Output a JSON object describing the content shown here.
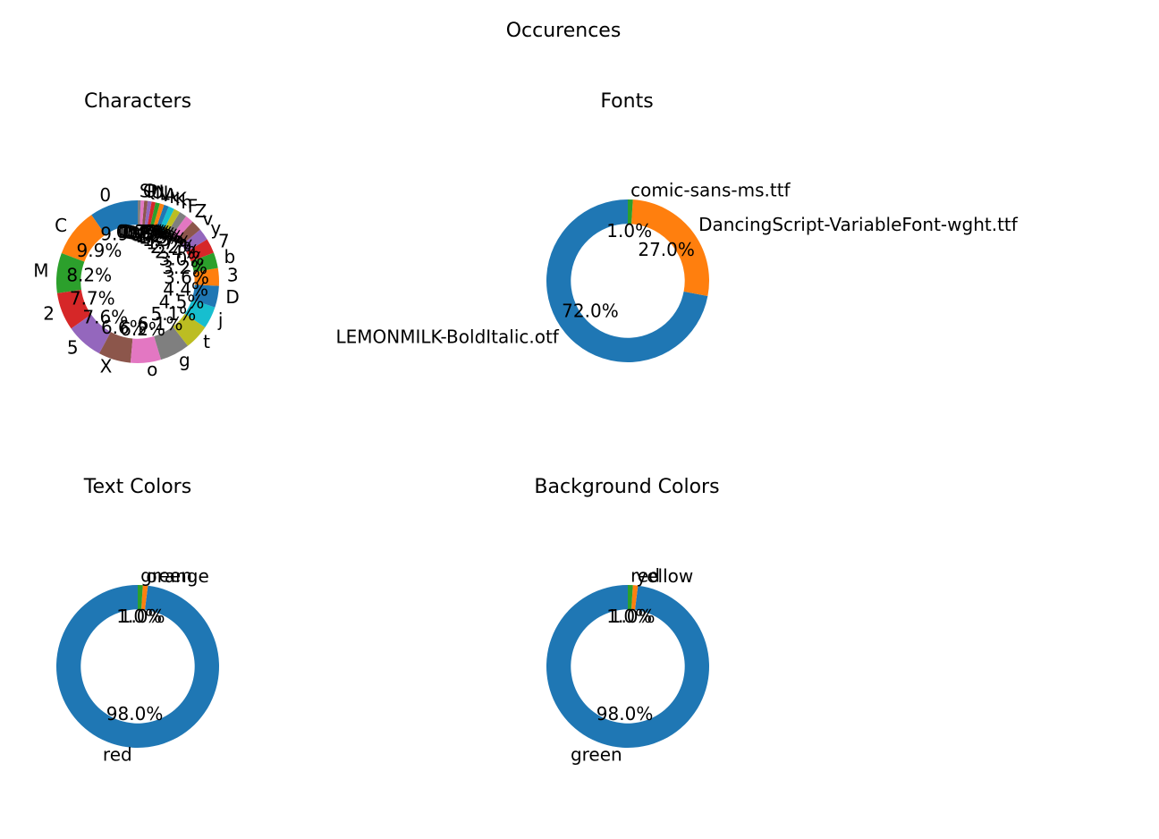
{
  "figure": {
    "suptitle": "Occurences"
  },
  "colors": {
    "palette": [
      "#1f77b4",
      "#ff7f0e",
      "#2ca02c",
      "#d62728",
      "#9467bd",
      "#8c564b",
      "#e377c2",
      "#7f7f7f",
      "#bcbd22",
      "#17becf"
    ],
    "background": "#ffffff"
  },
  "chart_data": [
    {
      "type": "pie",
      "style": "donut",
      "title": "Characters",
      "start_angle_deg": 90,
      "direction": "counterclockwise",
      "hole_fraction": 0.7,
      "categories": [
        "0",
        "C",
        "M",
        "2",
        "5",
        "X",
        "o",
        "g",
        "t",
        "j",
        "D",
        "3",
        "b",
        "7",
        "y",
        "v",
        "Z",
        "F",
        "h",
        "K",
        "k",
        "A",
        "L",
        "N",
        "U",
        "P",
        "Q",
        "S"
      ],
      "values": [
        9.9,
        9.9,
        8.2,
        7.7,
        7.6,
        6.6,
        6.2,
        6.1,
        5.1,
        4.5,
        4.4,
        3.6,
        3.2,
        3.0,
        2.4,
        2.2,
        1.7,
        1.5,
        1.3,
        1.2,
        1.0,
        0.9,
        0.9,
        0.8,
        0.8,
        0.7,
        0.7,
        0.6
      ],
      "autopct_labels": [
        "9.9%",
        "9.9%",
        "8.2%",
        "7.7%",
        "7.6%",
        "6.6%",
        "6.2%",
        "6.1%",
        "5.1%",
        "4.5%",
        "4.4%",
        "3.6%",
        "3.2%",
        "3.0%",
        "2.4%",
        "2.2%",
        "1.7%",
        "1.5%",
        "1.3%",
        "1.2%",
        "1.0%",
        "0.9%",
        "0.9%",
        "0.8%",
        "0.8%",
        "0.7%",
        "0.7%",
        "0.6%"
      ]
    },
    {
      "type": "pie",
      "style": "donut",
      "title": "Fonts",
      "start_angle_deg": 90,
      "direction": "counterclockwise",
      "hole_fraction": 0.7,
      "categories": [
        "LEMONMILK-BoldItalic.otf",
        "DancingScript-VariableFont-wght.ttf",
        "comic-sans-ms.ttf"
      ],
      "values": [
        72.0,
        27.0,
        1.0
      ],
      "autopct_labels": [
        "72.0%",
        "27.0%",
        "1.0%"
      ]
    },
    {
      "type": "pie",
      "style": "donut",
      "title": "Text Colors",
      "start_angle_deg": 90,
      "direction": "counterclockwise",
      "hole_fraction": 0.7,
      "categories": [
        "red",
        "orange",
        "green"
      ],
      "values": [
        98.0,
        1.0,
        1.0
      ],
      "autopct_labels": [
        "98.0%",
        "1.0%",
        "1.0%"
      ]
    },
    {
      "type": "pie",
      "style": "donut",
      "title": "Background Colors",
      "start_angle_deg": 90,
      "direction": "counterclockwise",
      "hole_fraction": 0.7,
      "categories": [
        "green",
        "yellow",
        "red"
      ],
      "values": [
        98.0,
        1.0,
        1.0
      ],
      "autopct_labels": [
        "98.0%",
        "1.0%",
        "1.0%"
      ]
    }
  ]
}
